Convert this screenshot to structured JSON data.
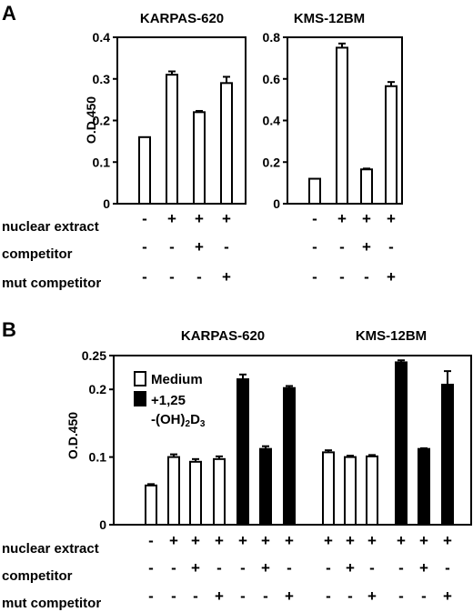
{
  "panel_a": {
    "letter": "A",
    "ylabel": "O.D.450",
    "rows": [
      "nuclear extract",
      "competitor",
      "mut competitor"
    ]
  },
  "panel_b": {
    "letter": "B",
    "ylabel": "O.D.450",
    "rows": [
      "nuclear extract",
      "competitor",
      "mut competitor"
    ],
    "legend": {
      "medium": "Medium",
      "treated_line1": "+1,25",
      "treated_line2_pre": "-(OH)",
      "treated_sub1": "2",
      "treated_mid": "D",
      "treated_sub2": "3"
    }
  },
  "chart_data": [
    {
      "id": "A-karpas",
      "type": "bar",
      "title": "KARPAS-620",
      "ylabel": "O.D.450",
      "ylim": [
        0,
        0.4
      ],
      "yticks": [
        "0",
        "0.1",
        "0.2",
        "0.3",
        "0.4"
      ],
      "tick_values": [
        0,
        0.1,
        0.2,
        0.3,
        0.4
      ],
      "values": [
        0.16,
        0.31,
        0.22,
        0.29
      ],
      "errors": [
        0,
        0.008,
        0.003,
        0.015
      ],
      "fills": [
        "white",
        "white",
        "white",
        "white"
      ],
      "conditions": {
        "nuclear extract": [
          "-",
          "+",
          "+",
          "+"
        ],
        "competitor": [
          "-",
          "-",
          "+",
          "-"
        ],
        "mut competitor": [
          "-",
          "-",
          "-",
          "+"
        ]
      }
    },
    {
      "id": "A-kms",
      "type": "bar",
      "title": "KMS-12BM",
      "ylabel": "",
      "ylim": [
        0,
        0.8
      ],
      "yticks": [
        "0",
        "0.2",
        "0.4",
        "0.6",
        "0.8"
      ],
      "tick_values": [
        0,
        0.2,
        0.4,
        0.6,
        0.8
      ],
      "values": [
        0.12,
        0.75,
        0.165,
        0.565
      ],
      "errors": [
        0,
        0.02,
        0.004,
        0.02
      ],
      "fills": [
        "white",
        "white",
        "white",
        "white"
      ],
      "conditions": {
        "nuclear extract": [
          "-",
          "+",
          "+",
          "+"
        ],
        "competitor": [
          "-",
          "-",
          "+",
          "-"
        ],
        "mut competitor": [
          "-",
          "-",
          "-",
          "+"
        ]
      }
    },
    {
      "id": "B",
      "type": "bar",
      "titles": [
        "KARPAS-620",
        "KMS-12BM"
      ],
      "ylabel": "O.D.450",
      "ylim": [
        0,
        0.25
      ],
      "yticks": [
        "0",
        "0.1",
        "0.2",
        "0.25"
      ],
      "tick_values": [
        0,
        0.1,
        0.2,
        0.25
      ],
      "series": [
        {
          "name": "Medium",
          "fill": "white"
        },
        {
          "name": "+1,25 -(OH)2D3",
          "fill": "black"
        }
      ],
      "values": [
        0.058,
        0.1,
        0.093,
        0.097,
        0.215,
        0.112,
        0.202,
        0.107,
        0.1,
        0.101,
        0.24,
        0.112,
        0.207
      ],
      "errors": [
        0.002,
        0.004,
        0.004,
        0.004,
        0.007,
        0.004,
        0.003,
        0.003,
        0.002,
        0.002,
        0.003,
        0.001,
        0.02
      ],
      "fills": [
        "white",
        "white",
        "white",
        "white",
        "black",
        "black",
        "black",
        "white",
        "white",
        "white",
        "black",
        "black",
        "black"
      ],
      "conditions": {
        "nuclear extract": [
          "-",
          "+",
          "+",
          "+",
          "+",
          "+",
          "+",
          "+",
          "+",
          "+",
          "+",
          "+",
          "+"
        ],
        "competitor": [
          "-",
          "-",
          "+",
          "-",
          "-",
          "+",
          "-",
          "-",
          "+",
          "-",
          "-",
          "+",
          "-"
        ],
        "mut competitor": [
          "-",
          "-",
          "-",
          "+",
          "-",
          "-",
          "+",
          "-",
          "-",
          "+",
          "-",
          "-",
          "+"
        ]
      }
    }
  ]
}
